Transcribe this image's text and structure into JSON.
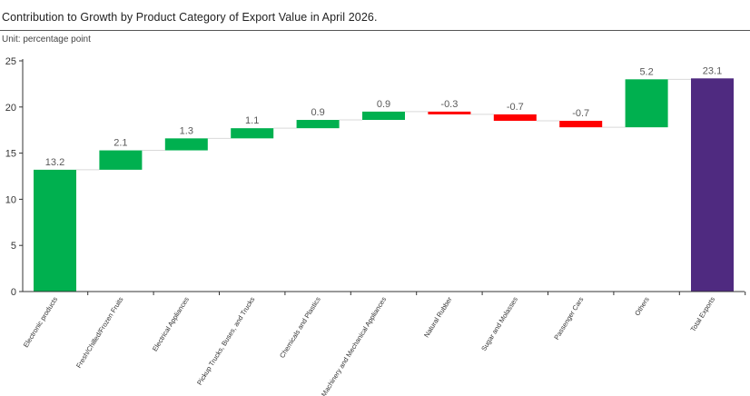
{
  "header": {
    "title": "Contribution to Growth by Product Category of Export Value in April 2026.",
    "unit": "Unit: percentage point"
  },
  "colors": {
    "positive": "#00b04f",
    "negative": "#ff0000",
    "total": "#4f2a80",
    "axis": "#333333",
    "connector": "#d9d9d9",
    "label": "#595959"
  },
  "chart_data": {
    "type": "bar",
    "subtype": "waterfall",
    "title": "Contribution to Growth by Product Category of Export Value in April 2026.",
    "ylabel": "Unit: percentage point",
    "ylim": [
      0,
      25
    ],
    "yticks": [
      0,
      5,
      10,
      15,
      20,
      25
    ],
    "grid": false,
    "legend": "none",
    "categories": [
      "Electronic products",
      "Fresh/Chilled/Frozen Fruits",
      "Electrical Appliances",
      "Pickup Trucks, Buses, and Trucks",
      "Chemicals and Plastics",
      "Machinery and Mechanical Appliances",
      "Natural Rubber",
      "Sugar and Molasses",
      "Passenger Cars",
      "Others",
      "Total Exports"
    ],
    "values": [
      13.2,
      2.1,
      1.3,
      1.1,
      0.9,
      0.9,
      -0.3,
      -0.7,
      -0.7,
      5.2,
      23.1
    ],
    "value_labels": [
      "13.2",
      "2.1",
      "1.3",
      "1.1",
      "0.9",
      "0.9",
      "-0.3",
      "-0.7",
      "-0.7",
      "5.2",
      "23.1"
    ],
    "kinds": [
      "delta",
      "delta",
      "delta",
      "delta",
      "delta",
      "delta",
      "delta",
      "delta",
      "delta",
      "delta",
      "total"
    ]
  }
}
